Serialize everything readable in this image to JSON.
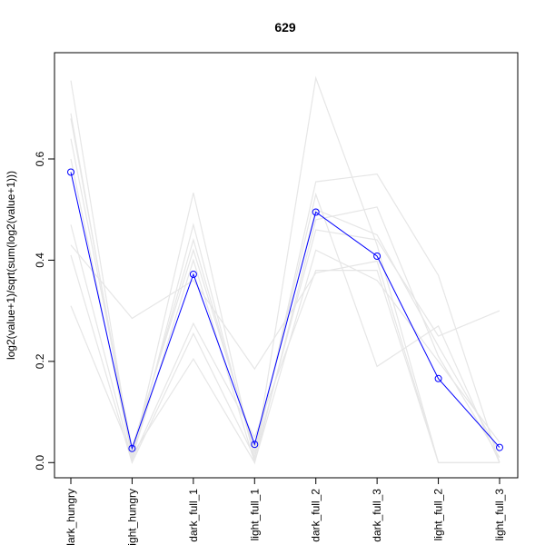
{
  "chart_data": {
    "type": "line",
    "title": "629",
    "xlabel": "",
    "ylabel": "log2(value+1)/sqrt(sum(log2(value+1)))",
    "categories": [
      "dark_hungry",
      "light_hungry",
      "dark_full_1",
      "light_full_1",
      "dark_full_2",
      "dark_full_3",
      "light_full_2",
      "light_full_3"
    ],
    "ylim": [
      -0.03,
      0.81
    ],
    "yticks": [
      0.0,
      0.2,
      0.4,
      0.6
    ],
    "ytick_labels": [
      "0.0",
      "0.2",
      "0.4",
      "0.6"
    ],
    "grid": false,
    "highlight_color": "#0000ff",
    "background_color": "#e6e6e6",
    "highlight": {
      "values": [
        0.574,
        0.028,
        0.372,
        0.036,
        0.495,
        0.408,
        0.166,
        0.03
      ]
    },
    "background_series": [
      {
        "values": [
          0.755,
          0.01,
          0.533,
          0.005,
          0.76,
          0.43,
          0.0,
          0.0
        ]
      },
      {
        "values": [
          0.69,
          0.005,
          0.47,
          0.01,
          0.555,
          0.57,
          0.37,
          0.0
        ]
      },
      {
        "values": [
          0.68,
          0.02,
          0.44,
          0.02,
          0.53,
          0.19,
          0.27,
          0.0
        ]
      },
      {
        "values": [
          0.64,
          0.03,
          0.42,
          0.03,
          0.5,
          0.45,
          0.23,
          0.02
        ]
      },
      {
        "values": [
          0.6,
          0.01,
          0.4,
          0.0,
          0.48,
          0.505,
          0.21,
          0.01
        ]
      },
      {
        "values": [
          0.47,
          0.005,
          0.275,
          0.05,
          0.38,
          0.38,
          0.0,
          0.0
        ]
      },
      {
        "values": [
          0.43,
          0.285,
          0.36,
          0.185,
          0.375,
          0.398,
          0.0,
          0.0
        ]
      },
      {
        "values": [
          0.41,
          0.0,
          0.255,
          0.01,
          0.46,
          0.44,
          0.25,
          0.3
        ]
      },
      {
        "values": [
          0.31,
          0.015,
          0.205,
          0.0,
          0.42,
          0.36,
          0.2,
          0.04
        ]
      }
    ]
  }
}
